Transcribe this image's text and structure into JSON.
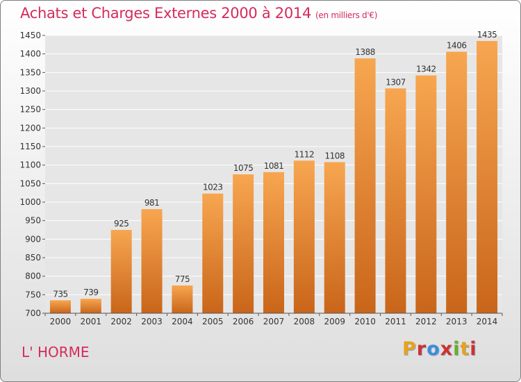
{
  "title": "Achats et Charges Externes 2000 à 2014",
  "unit": "(en milliers d'€)",
  "place": "L' HORME",
  "logo": {
    "text": "Proxiti",
    "colors": [
      "#e8a21c",
      "#3e8ed6",
      "#d0312d",
      "#6aae2b"
    ]
  },
  "colors": {
    "bar_top": "#f7a650",
    "bar_bottom": "#c9651a",
    "title": "#d62a5a",
    "grid": "#ffffff",
    "plot_bg": "#e6e6e6"
  },
  "chart_data": {
    "type": "bar",
    "title": "Achats et Charges Externes 2000 à 2014",
    "xlabel": "",
    "ylabel": "",
    "categories": [
      "2000",
      "2001",
      "2002",
      "2003",
      "2004",
      "2005",
      "2006",
      "2007",
      "2008",
      "2009",
      "2010",
      "2011",
      "2012",
      "2013",
      "2014"
    ],
    "values": [
      735,
      739,
      925,
      981,
      775,
      1023,
      1075,
      1081,
      1112,
      1108,
      1388,
      1307,
      1342,
      1406,
      1435
    ],
    "ylim": [
      700,
      1450
    ],
    "yticks": [
      700,
      750,
      800,
      850,
      900,
      950,
      1000,
      1050,
      1100,
      1150,
      1200,
      1250,
      1300,
      1350,
      1400,
      1450
    ],
    "grid": true,
    "data_labels": true
  }
}
